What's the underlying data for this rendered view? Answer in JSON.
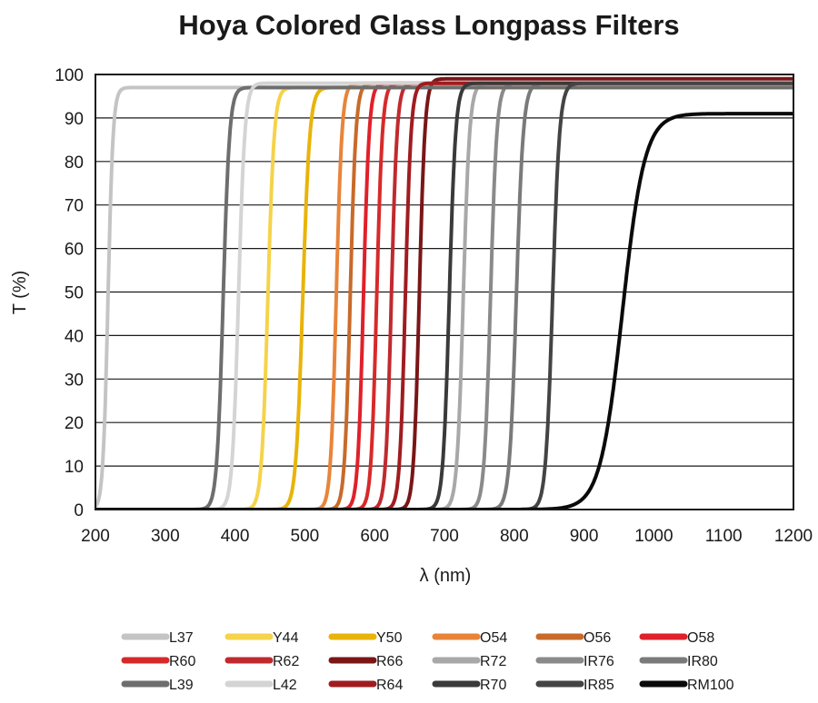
{
  "chart_data": {
    "type": "line",
    "title": "Hoya Colored Glass Longpass Filters",
    "xlabel": "λ (nm)",
    "ylabel": "T (%)",
    "xlim": [
      200,
      1200
    ],
    "ylim": [
      0,
      100
    ],
    "xticks": [
      200,
      300,
      400,
      500,
      600,
      700,
      800,
      900,
      1000,
      1100,
      1200
    ],
    "yticks": [
      0,
      10,
      20,
      30,
      40,
      50,
      60,
      70,
      80,
      90,
      100
    ],
    "grid": "horizontal",
    "legend_position": "bottom",
    "series": [
      {
        "name": "L37",
        "color": "#c4c4c4",
        "cut_on": 218,
        "width": 16,
        "max": 97
      },
      {
        "name": "Y44",
        "color": "#f5d34a",
        "cut_on": 447,
        "width": 20,
        "max": 97
      },
      {
        "name": "Y50",
        "color": "#e8b40a",
        "cut_on": 497,
        "width": 22,
        "max": 97
      },
      {
        "name": "O54",
        "color": "#e8843a",
        "cut_on": 545,
        "width": 18,
        "max": 98
      },
      {
        "name": "O56",
        "color": "#c86a2a",
        "cut_on": 565,
        "width": 18,
        "max": 98
      },
      {
        "name": "O58",
        "color": "#e0202a",
        "cut_on": 584,
        "width": 18,
        "max": 98
      },
      {
        "name": "R60",
        "color": "#d62a2a",
        "cut_on": 603,
        "width": 18,
        "max": 98
      },
      {
        "name": "R62",
        "color": "#c02a2e",
        "cut_on": 624,
        "width": 18,
        "max": 98
      },
      {
        "name": "R66",
        "color": "#7a1616",
        "cut_on": 664,
        "width": 18,
        "max": 99
      },
      {
        "name": "R72",
        "color": "#a8a8a8",
        "cut_on": 727,
        "width": 20,
        "max": 98
      },
      {
        "name": "IR76",
        "color": "#8a8a8a",
        "cut_on": 766,
        "width": 20,
        "max": 98
      },
      {
        "name": "IR80",
        "color": "#7a7a7a",
        "cut_on": 803,
        "width": 22,
        "max": 98
      },
      {
        "name": "L39",
        "color": "#6e6e6e",
        "cut_on": 383,
        "width": 20,
        "max": 97
      },
      {
        "name": "L42",
        "color": "#d4d4d4",
        "cut_on": 405,
        "width": 20,
        "max": 98
      },
      {
        "name": "R64",
        "color": "#a01c20",
        "cut_on": 644,
        "width": 18,
        "max": 98
      },
      {
        "name": "R70",
        "color": "#3a3a3a",
        "cut_on": 707,
        "width": 20,
        "max": 98
      },
      {
        "name": "IR85",
        "color": "#444444",
        "cut_on": 855,
        "width": 22,
        "max": 98
      },
      {
        "name": "RM100",
        "color": "#0a0a0a",
        "cut_on": 955,
        "width": 70,
        "max": 91
      }
    ]
  }
}
